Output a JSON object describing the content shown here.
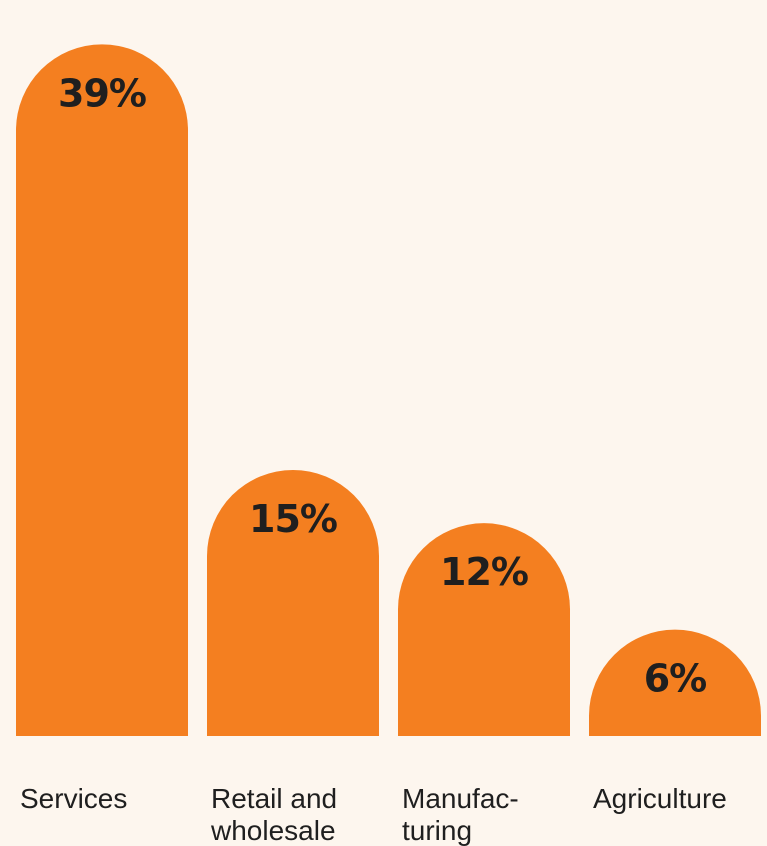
{
  "colors": {
    "background": "#fdf6ee",
    "bar": "#f47f20",
    "text": "#1f1f1f"
  },
  "chart_data": {
    "type": "bar",
    "categories": [
      [
        "Services"
      ],
      [
        "Retail and",
        "wholesale"
      ],
      [
        "Manufac-",
        "turing"
      ],
      [
        "Agriculture"
      ]
    ],
    "values": [
      39,
      15,
      12,
      6
    ],
    "value_labels": [
      "39%",
      "15%",
      "12%",
      "6%"
    ],
    "unit": "%",
    "title": "",
    "xlabel": "",
    "ylabel": "",
    "ylim": [
      0,
      41.5
    ],
    "grid": false,
    "legend": "none"
  }
}
